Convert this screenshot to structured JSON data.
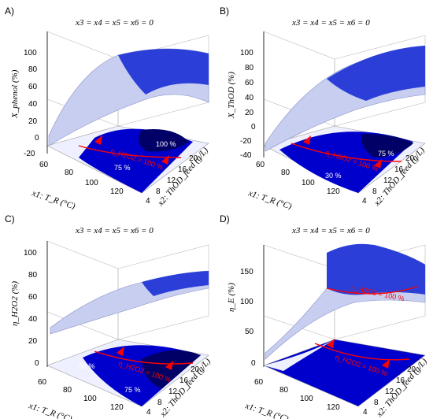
{
  "chart_data": [
    {
      "type": "surface",
      "panel_label": "A)",
      "title": "x3 = x4 = x5 = x6 = 0",
      "zlabel": "X_phenol (%)",
      "xlabel": "x1: T_R (°C)",
      "ylabel": "x2: ThOD_feed (g/L)",
      "x_ticks": [
        "60",
        "80",
        "100",
        "120"
      ],
      "y_ticks": [
        "4",
        "8",
        "12",
        "16",
        "20"
      ],
      "z_ticks": [
        "100",
        "80",
        "60",
        "40",
        "20",
        "0",
        "-20"
      ],
      "zlim": [
        -20,
        100
      ],
      "contour_labels": [
        "100 %",
        "75 %",
        "η_H2O2 = 100 %"
      ]
    },
    {
      "type": "surface",
      "panel_label": "B)",
      "title": "x3 = x4 = x5 = x6 = 0",
      "zlabel": "X_ThOD (%)",
      "xlabel": "x1: T_R (°C)",
      "ylabel": "x2: ThOD_feed (g/L)",
      "x_ticks": [
        "60",
        "80",
        "100",
        "120"
      ],
      "y_ticks": [
        "4",
        "8",
        "12",
        "16",
        "20"
      ],
      "z_ticks": [
        "100",
        "80",
        "60",
        "40",
        "20",
        "0",
        "-20",
        "-40"
      ],
      "zlim": [
        -40,
        100
      ],
      "contour_labels": [
        "75 %",
        "30 %",
        "η_H2O2 = 100 %"
      ]
    },
    {
      "type": "surface",
      "panel_label": "C)",
      "title": "x3 = x4 = x5 = x6 = 0",
      "zlabel": "η_H2O2 (%)",
      "xlabel": "x1: T_R (°C)",
      "ylabel": "x2: ThOD_feed (g/L)",
      "x_ticks": [
        "60",
        "80",
        "100",
        "120"
      ],
      "y_ticks": [
        "4",
        "8",
        "12",
        "16",
        "20"
      ],
      "z_ticks": [
        "100",
        "80",
        "60",
        "40",
        "20",
        "0"
      ],
      "zlim": [
        0,
        100
      ],
      "contour_labels": [
        "50 %",
        "75 %",
        "η_H2O2 = 100 %"
      ]
    },
    {
      "type": "surface",
      "panel_label": "D)",
      "title": "x3 = x4 = x5 = x6 = 0",
      "zlabel": "η_E (%)",
      "xlabel": "x1: T_R (°C)",
      "ylabel": "x2: ThOD_feed (g/L)",
      "x_ticks": [
        "60",
        "80",
        "100",
        "120"
      ],
      "y_ticks": [
        "4",
        "8",
        "12",
        "16",
        "20"
      ],
      "z_ticks": [
        "150",
        "100",
        "50",
        "0"
      ],
      "zlim": [
        0,
        150
      ],
      "contour_labels": [
        "η_H2O2 = 100 %",
        "η_H2O2 = 100 %"
      ]
    }
  ]
}
